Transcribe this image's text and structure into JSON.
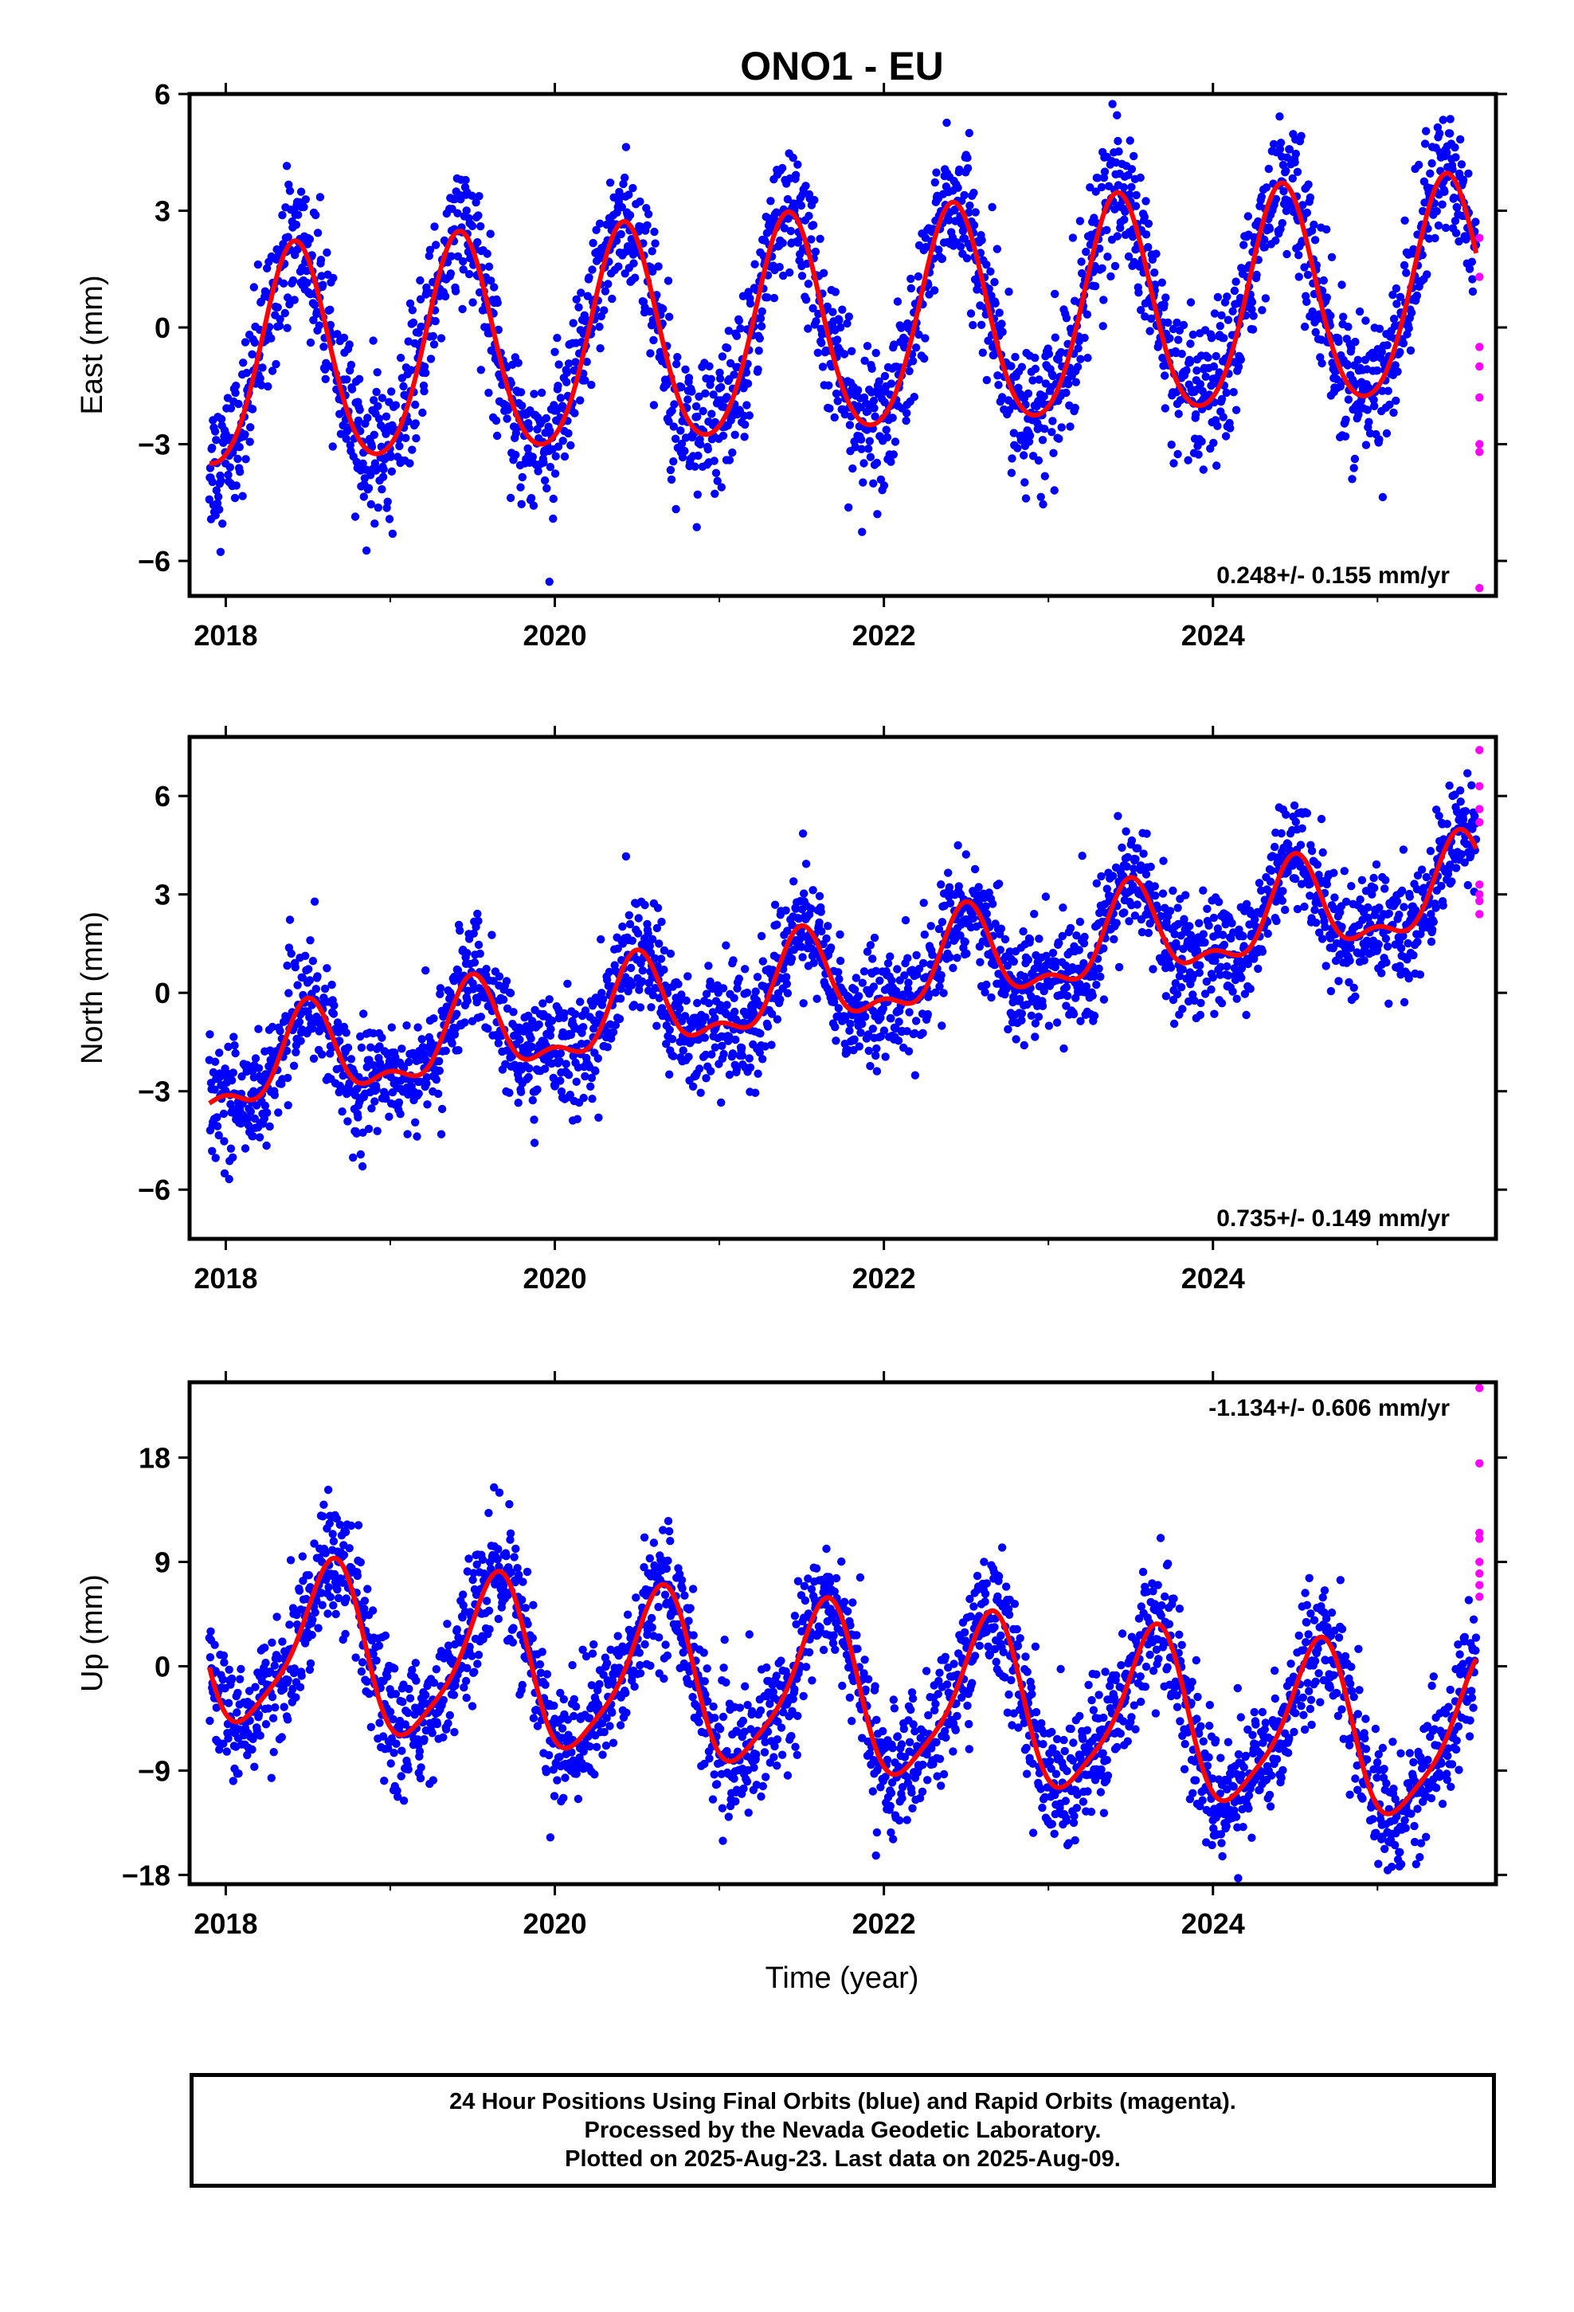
{
  "title": "ONO1 - EU",
  "xlabel": "Time (year)",
  "footer": {
    "line1": "24 Hour Positions Using Final Orbits (blue) and Rapid Orbits (magenta).",
    "line2": "Processed by the Nevada Geodetic Laboratory.",
    "line3": "Plotted on 2025-Aug-23. Last data on 2025-Aug-09."
  },
  "colors": {
    "final": "#0000ff",
    "rapid": "#ff00ff",
    "model": "#ff0000",
    "axis": "#000000"
  },
  "chart_data": [
    {
      "type": "scatter",
      "id": "east",
      "ylabel": "East (mm)",
      "xlim": [
        2017.78,
        2025.72
      ],
      "ylim": [
        -6.9,
        6.0
      ],
      "yticks": [
        -6,
        -3,
        0,
        3,
        6
      ],
      "xticks": [
        2018,
        2020,
        2022,
        2024
      ],
      "rate_label": "0.248+/- 0.155 mm/yr",
      "rate_position": "bottom-right",
      "model": {
        "offset": -1.0,
        "trend": 0.248,
        "t0": 2017.9,
        "annual_amp": 2.8,
        "annual_peak": 2018.42,
        "semi_amp": 0.3,
        "semi_peak": 2018.42,
        "x_start": 2017.9,
        "x_end": 2025.6
      },
      "scatter_sd": 0.9,
      "rapid_x": [
        2025.62,
        2025.62,
        2025.62,
        2025.62,
        2025.62,
        2025.62,
        2025.62,
        2025.62
      ],
      "rapid_y": [
        2.3,
        1.3,
        -0.5,
        -1.0,
        -1.8,
        -3.0,
        -3.2,
        -6.7
      ]
    },
    {
      "type": "scatter",
      "id": "north",
      "ylabel": "North (mm)",
      "xlim": [
        2017.78,
        2025.72
      ],
      "ylim": [
        -7.5,
        7.8
      ],
      "yticks": [
        -6,
        -3,
        0,
        3,
        6
      ],
      "xticks": [
        2018,
        2020,
        2022,
        2024
      ],
      "rate_label": "0.735+/- 0.149 mm/yr",
      "rate_position": "bottom-right",
      "model": {
        "offset": -2.5,
        "trend": 0.735,
        "t0": 2017.9,
        "annual_amp": 1.3,
        "annual_peak": 2018.5,
        "semi_amp": 0.6,
        "semi_peak": 2018.5,
        "x_start": 2017.9,
        "x_end": 2025.6
      },
      "scatter_sd": 0.85,
      "rapid_x": [
        2025.62,
        2025.62,
        2025.62,
        2025.62,
        2025.62,
        2025.62,
        2025.62,
        2025.62
      ],
      "rapid_y": [
        7.4,
        6.3,
        5.6,
        5.2,
        3.3,
        3.0,
        2.8,
        2.4
      ]
    },
    {
      "type": "scatter",
      "id": "up",
      "ylabel": "Up (mm)",
      "xlim": [
        2017.78,
        2025.72
      ],
      "ylim": [
        -18.8,
        24.5
      ],
      "yticks": [
        -18,
        -9,
        0,
        9,
        18
      ],
      "xticks": [
        2018,
        2020,
        2022,
        2024
      ],
      "rate_label": "-1.134+/- 0.606 mm/yr",
      "rate_position": "top-right",
      "model": {
        "offset": 2.0,
        "trend": -1.134,
        "t0": 2017.9,
        "annual_amp": 7.0,
        "annual_peak": 2018.63,
        "semi_amp": 1.5,
        "semi_peak": 2018.2,
        "x_start": 2017.9,
        "x_end": 2025.6
      },
      "scatter_sd": 2.7,
      "rapid_x": [
        2025.62,
        2025.62,
        2025.62,
        2025.62,
        2025.62,
        2025.62,
        2025.62,
        2025.62
      ],
      "rapid_y": [
        24.0,
        17.5,
        11.5,
        11.0,
        9.0,
        8.0,
        7.0,
        6.0
      ]
    }
  ]
}
